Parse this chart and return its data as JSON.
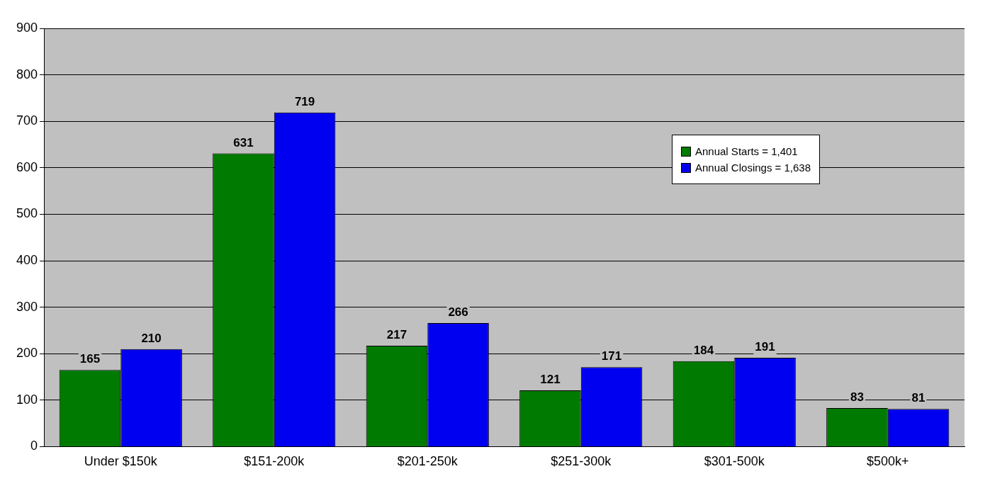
{
  "chart_data": {
    "type": "bar",
    "categories": [
      "Under $150k",
      "$151-200k",
      "$201-250k",
      "$251-300k",
      "$301-500k",
      "$500k+"
    ],
    "series": [
      {
        "name": "Annual Starts = 1,401",
        "color": "#007a00",
        "values": [
          165,
          631,
          217,
          121,
          184,
          83
        ]
      },
      {
        "name": "Annual Closings = 1,638",
        "color": "#0000f0",
        "values": [
          210,
          719,
          266,
          171,
          191,
          81
        ]
      }
    ],
    "ylim": [
      0,
      900
    ],
    "yticks": [
      0,
      100,
      200,
      300,
      400,
      500,
      600,
      700,
      800,
      900
    ],
    "grid": "y",
    "legend": "right",
    "data_labels": true
  }
}
